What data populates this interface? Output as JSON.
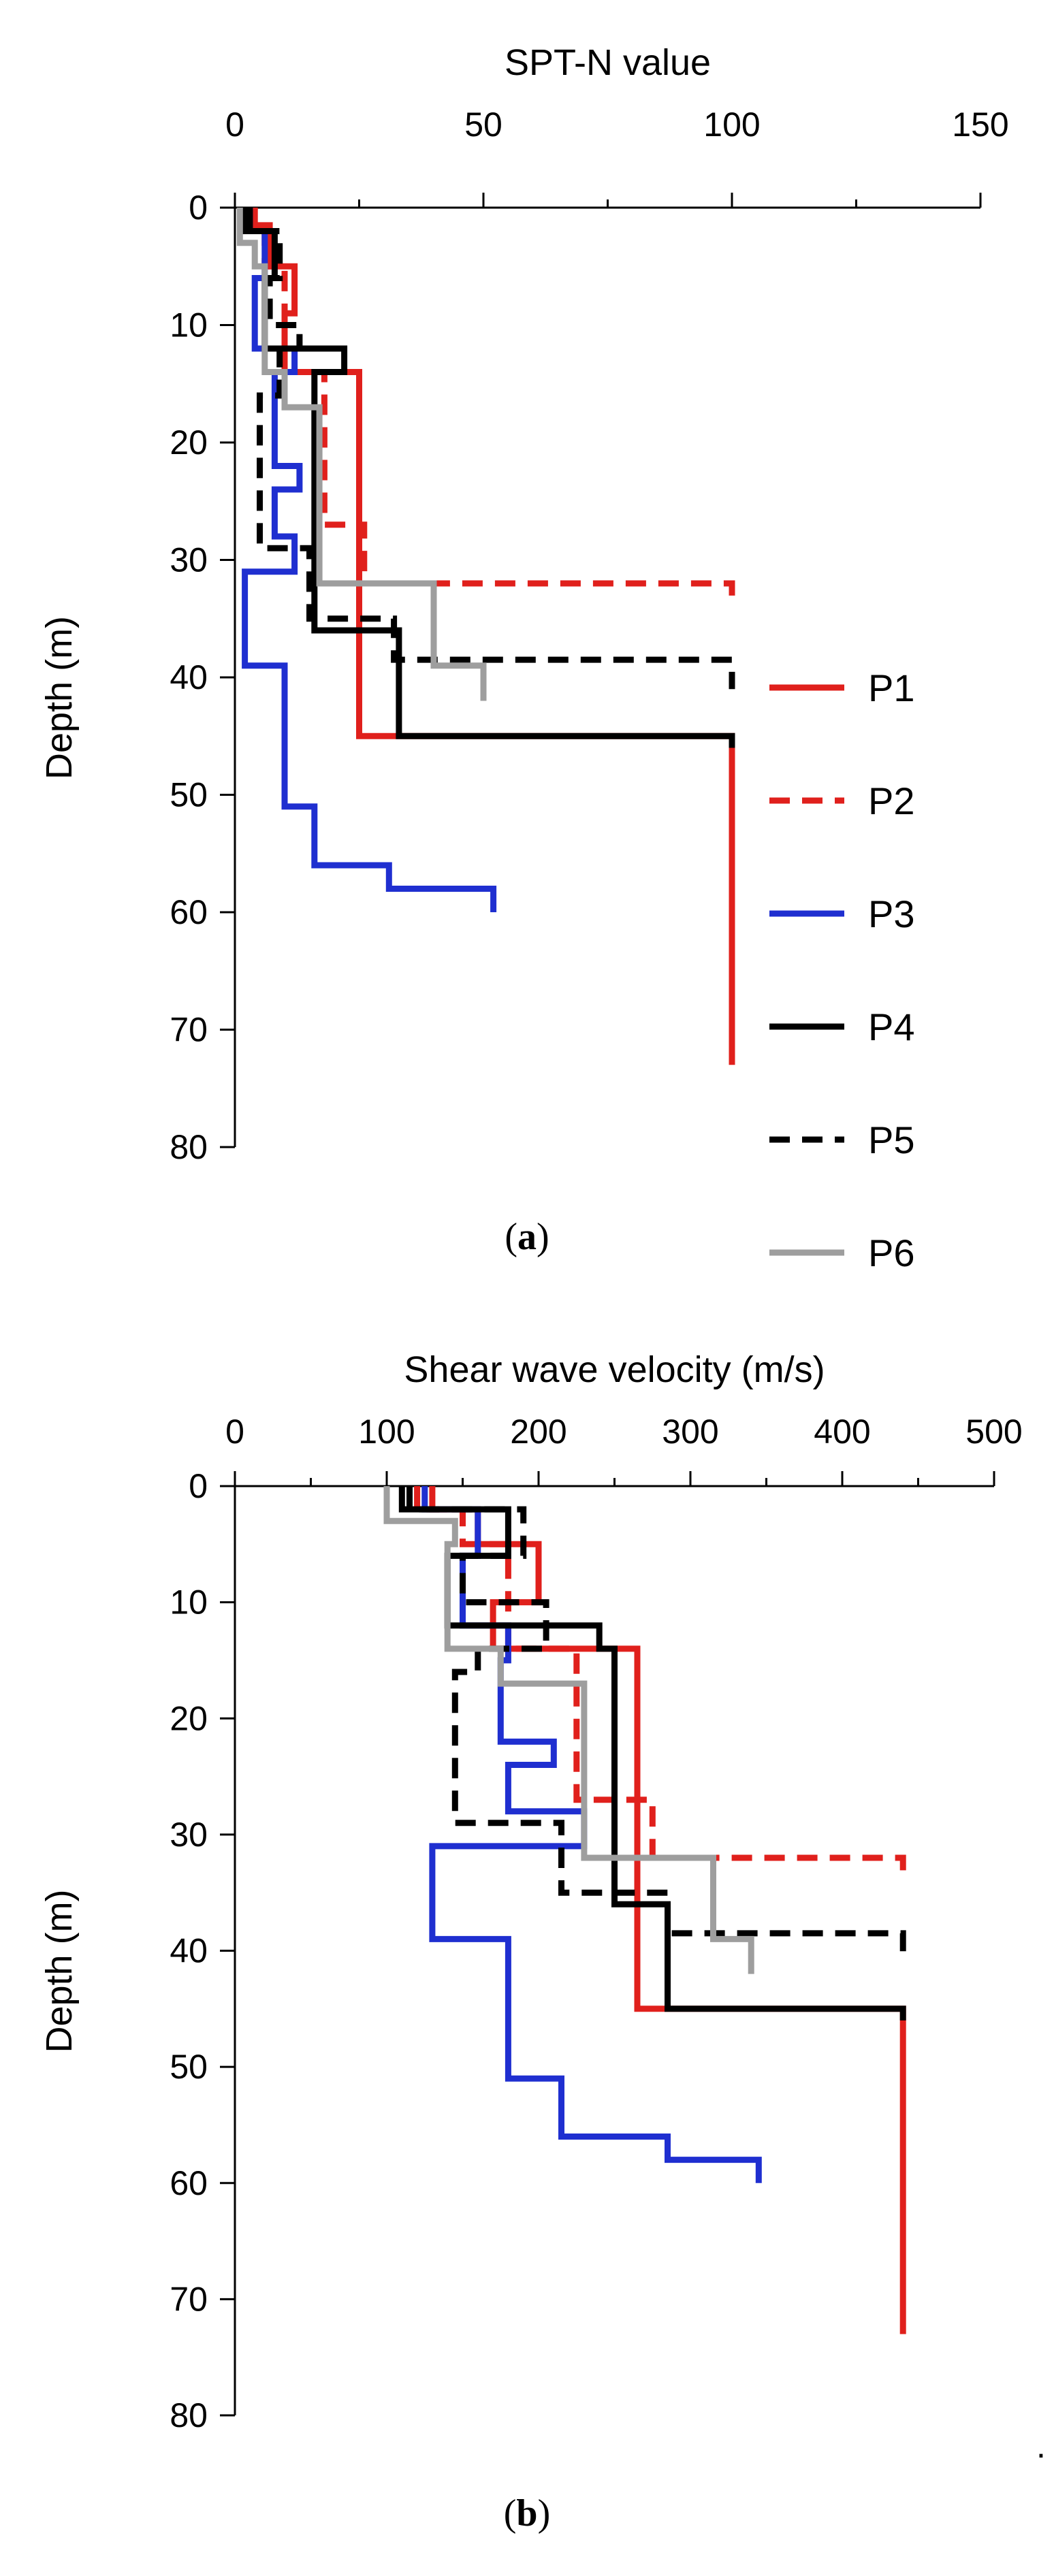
{
  "colors": {
    "P1": "#e0201c",
    "P2": "#e0201c",
    "P3": "#1f2fd0",
    "P4": "#000000",
    "P5": "#000000",
    "P6": "#9e9e9e"
  },
  "chart_data": [
    {
      "id": "a",
      "type": "line",
      "caption_open": "(",
      "caption_letter": "a",
      "caption_close": ")",
      "xlabel": "SPT-N value",
      "ylabel": "Depth (m)",
      "xlim": [
        0,
        150
      ],
      "ylim": [
        0,
        80
      ],
      "x_ticks": [
        0,
        50,
        100,
        150
      ],
      "y_ticks": [
        0,
        10,
        20,
        30,
        40,
        50,
        60,
        70,
        80
      ],
      "legend": [
        "P1",
        "P2",
        "P3",
        "P4",
        "P5",
        "P6"
      ],
      "series": [
        {
          "name": "P1",
          "dash": "solid",
          "steps": [
            [
              4,
              0
            ],
            [
              4,
              1.5
            ],
            [
              7,
              1.5
            ],
            [
              7,
              5
            ],
            [
              12,
              5
            ],
            [
              12,
              9
            ],
            [
              10,
              9
            ],
            [
              10,
              14
            ],
            [
              25,
              14
            ],
            [
              25,
              45
            ],
            [
              100,
              45
            ],
            [
              100,
              73
            ]
          ]
        },
        {
          "name": "P2",
          "dash": "dashed",
          "steps": [
            [
              3,
              0
            ],
            [
              3,
              1.5
            ],
            [
              6,
              1.5
            ],
            [
              6,
              5
            ],
            [
              10,
              5
            ],
            [
              10,
              14
            ],
            [
              18,
              14
            ],
            [
              18,
              27
            ],
            [
              26,
              27
            ],
            [
              26,
              32
            ],
            [
              100,
              32
            ],
            [
              100,
              34
            ]
          ]
        },
        {
          "name": "P3",
          "dash": "solid",
          "steps": [
            [
              3,
              0
            ],
            [
              3,
              2
            ],
            [
              6,
              2
            ],
            [
              6,
              6
            ],
            [
              4,
              6
            ],
            [
              4,
              12
            ],
            [
              12,
              12
            ],
            [
              12,
              14
            ],
            [
              8,
              14
            ],
            [
              8,
              22
            ],
            [
              13,
              22
            ],
            [
              13,
              24
            ],
            [
              8,
              24
            ],
            [
              8,
              28
            ],
            [
              12,
              28
            ],
            [
              12,
              31
            ],
            [
              2,
              31
            ],
            [
              2,
              39
            ],
            [
              10,
              39
            ],
            [
              10,
              51
            ],
            [
              16,
              51
            ],
            [
              16,
              56
            ],
            [
              31,
              56
            ],
            [
              31,
              58
            ],
            [
              52,
              58
            ],
            [
              52,
              60
            ]
          ]
        },
        {
          "name": "P4",
          "dash": "solid",
          "steps": [
            [
              2,
              0
            ],
            [
              2,
              2
            ],
            [
              8,
              2
            ],
            [
              8,
              6
            ],
            [
              6,
              6
            ],
            [
              6,
              12
            ],
            [
              22,
              12
            ],
            [
              22,
              14
            ],
            [
              16,
              14
            ],
            [
              16,
              36
            ],
            [
              33,
              36
            ],
            [
              33,
              45
            ],
            [
              100,
              45
            ],
            [
              100,
              46
            ]
          ]
        },
        {
          "name": "P5",
          "dash": "dashed",
          "steps": [
            [
              3,
              0
            ],
            [
              3,
              2
            ],
            [
              9,
              2
            ],
            [
              9,
              6
            ],
            [
              7,
              6
            ],
            [
              7,
              10
            ],
            [
              13,
              10
            ],
            [
              13,
              12
            ],
            [
              9,
              12
            ],
            [
              9,
              16
            ],
            [
              5,
              16
            ],
            [
              5,
              29
            ],
            [
              15,
              29
            ],
            [
              15,
              35
            ],
            [
              32,
              35
            ],
            [
              32,
              38.5
            ],
            [
              100,
              38.5
            ],
            [
              100,
              41
            ]
          ]
        },
        {
          "name": "P6",
          "dash": "solid",
          "steps": [
            [
              1,
              0
            ],
            [
              1,
              3
            ],
            [
              4,
              3
            ],
            [
              4,
              5
            ],
            [
              6,
              5
            ],
            [
              6,
              14
            ],
            [
              10,
              14
            ],
            [
              10,
              17
            ],
            [
              17,
              17
            ],
            [
              17,
              32
            ],
            [
              40,
              32
            ],
            [
              40,
              39
            ],
            [
              50,
              39
            ],
            [
              50,
              42
            ]
          ]
        }
      ]
    },
    {
      "id": "b",
      "type": "line",
      "caption_open": "(",
      "caption_letter": "b",
      "caption_close": ")",
      "xlabel": "Shear wave velocity (m/s)",
      "ylabel": "Depth (m)",
      "xlim": [
        0,
        500
      ],
      "ylim": [
        0,
        80
      ],
      "x_ticks": [
        0,
        100,
        200,
        300,
        400,
        500
      ],
      "y_ticks": [
        0,
        10,
        20,
        30,
        40,
        50,
        60,
        70,
        80
      ],
      "legend": [],
      "series": [
        {
          "name": "P1",
          "dash": "solid",
          "steps": [
            [
              130,
              0
            ],
            [
              130,
              2
            ],
            [
              160,
              2
            ],
            [
              160,
              5
            ],
            [
              200,
              5
            ],
            [
              200,
              10
            ],
            [
              170,
              10
            ],
            [
              170,
              14
            ],
            [
              265,
              14
            ],
            [
              265,
              45
            ],
            [
              440,
              45
            ],
            [
              440,
              73
            ]
          ]
        },
        {
          "name": "P2",
          "dash": "dashed",
          "steps": [
            [
              120,
              0
            ],
            [
              120,
              2
            ],
            [
              150,
              2
            ],
            [
              150,
              5
            ],
            [
              180,
              5
            ],
            [
              180,
              14
            ],
            [
              225,
              14
            ],
            [
              225,
              27
            ],
            [
              275,
              27
            ],
            [
              275,
              32
            ],
            [
              440,
              32
            ],
            [
              440,
              34
            ]
          ]
        },
        {
          "name": "P3",
          "dash": "solid",
          "steps": [
            [
              125,
              0
            ],
            [
              125,
              2
            ],
            [
              160,
              2
            ],
            [
              160,
              6
            ],
            [
              150,
              6
            ],
            [
              150,
              12
            ],
            [
              180,
              12
            ],
            [
              180,
              15
            ],
            [
              175,
              15
            ],
            [
              175,
              22
            ],
            [
              210,
              22
            ],
            [
              210,
              24
            ],
            [
              180,
              24
            ],
            [
              180,
              28
            ],
            [
              230,
              28
            ],
            [
              230,
              31
            ],
            [
              130,
              31
            ],
            [
              130,
              39
            ],
            [
              180,
              39
            ],
            [
              180,
              51
            ],
            [
              215,
              51
            ],
            [
              215,
              56
            ],
            [
              285,
              56
            ],
            [
              285,
              58
            ],
            [
              345,
              58
            ],
            [
              345,
              60
            ]
          ]
        },
        {
          "name": "P4",
          "dash": "solid",
          "steps": [
            [
              110,
              0
            ],
            [
              110,
              2
            ],
            [
              180,
              2
            ],
            [
              180,
              6
            ],
            [
              140,
              6
            ],
            [
              140,
              12
            ],
            [
              240,
              12
            ],
            [
              240,
              14
            ],
            [
              250,
              14
            ],
            [
              250,
              36
            ],
            [
              285,
              36
            ],
            [
              285,
              45
            ],
            [
              440,
              45
            ],
            [
              440,
              46
            ]
          ]
        },
        {
          "name": "P5",
          "dash": "dashed",
          "steps": [
            [
              115,
              0
            ],
            [
              115,
              2
            ],
            [
              190,
              2
            ],
            [
              190,
              6
            ],
            [
              150,
              6
            ],
            [
              150,
              10
            ],
            [
              205,
              10
            ],
            [
              205,
              14
            ],
            [
              160,
              14
            ],
            [
              160,
              16
            ],
            [
              145,
              16
            ],
            [
              145,
              29
            ],
            [
              215,
              29
            ],
            [
              215,
              35
            ],
            [
              285,
              35
            ],
            [
              285,
              38.5
            ],
            [
              440,
              38.5
            ],
            [
              440,
              41
            ]
          ]
        },
        {
          "name": "P6",
          "dash": "solid",
          "steps": [
            [
              100,
              0
            ],
            [
              100,
              3
            ],
            [
              145,
              3
            ],
            [
              145,
              5
            ],
            [
              140,
              5
            ],
            [
              140,
              14
            ],
            [
              175,
              14
            ],
            [
              175,
              17
            ],
            [
              230,
              17
            ],
            [
              230,
              32
            ],
            [
              315,
              32
            ],
            [
              315,
              39
            ],
            [
              340,
              39
            ],
            [
              340,
              42
            ]
          ]
        }
      ]
    }
  ]
}
